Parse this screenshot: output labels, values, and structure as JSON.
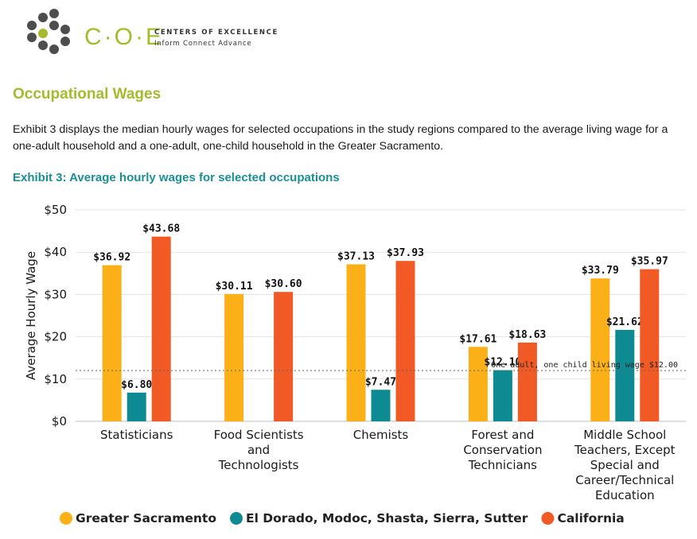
{
  "header": {
    "logo_text": "C·O·E",
    "org_name": "CENTERS OF EXCELLENCE",
    "tagline": "Inform  Connect  Advance"
  },
  "section_title": "Occupational Wages",
  "paragraph": "Exhibit 3 displays the median hourly wages for selected occupations in the study regions compared to the average living wage for a one-adult household and a one-adult, one-child household in the Greater Sacramento.",
  "exhibit_title": "Exhibit 3: Average hourly wages for selected occupations",
  "colors": {
    "greater_sacramento": "#fbb017",
    "el_dorado": "#0e8b92",
    "california": "#f15a24",
    "title_green": "#a8b92e",
    "exhibit_teal": "#1b8f98"
  },
  "chart_data": {
    "type": "bar",
    "ylabel": "Average Hourly Wage",
    "ylim": [
      0,
      50
    ],
    "yticks": [
      "$0",
      "$10",
      "$20",
      "$30",
      "$40",
      "$50"
    ],
    "grid": true,
    "legend_position": "bottom",
    "categories": [
      [
        "Statisticians"
      ],
      [
        "Food Scientists",
        "and",
        "Technologists"
      ],
      [
        "Chemists"
      ],
      [
        "Forest and",
        "Conservation",
        "Technicians"
      ],
      [
        "Middle School",
        "Teachers, Except",
        "Special and",
        "Career/Technical",
        "Education"
      ]
    ],
    "series": [
      {
        "name": "Greater Sacramento",
        "values": [
          36.92,
          30.11,
          37.13,
          17.61,
          33.79
        ],
        "labels": [
          "$36.92",
          "$30.11",
          "$37.13",
          "$17.61",
          "$33.79"
        ]
      },
      {
        "name": "El Dorado, Modoc, Shasta, Sierra, Sutter",
        "values": [
          6.8,
          null,
          7.47,
          12.1,
          21.62
        ],
        "labels": [
          "$6.80",
          "",
          "$7.47",
          "$12.10",
          "$21.62"
        ]
      },
      {
        "name": "California",
        "values": [
          43.68,
          30.6,
          37.93,
          18.63,
          35.97
        ],
        "labels": [
          "$43.68",
          "$30.60",
          "$37.93",
          "$18.63",
          "$35.97"
        ]
      }
    ],
    "reference_line": {
      "value": 12.0,
      "label": "One adult, one child living wage $12.00"
    }
  }
}
